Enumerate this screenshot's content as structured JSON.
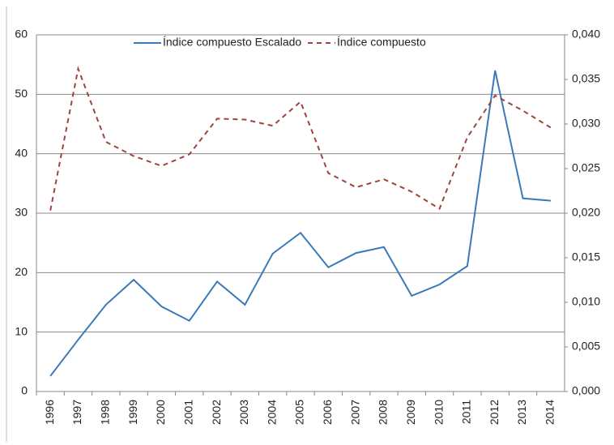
{
  "chart_data": {
    "type": "line",
    "categories": [
      "1996",
      "1997",
      "1998",
      "1999",
      "2000",
      "2001",
      "2002",
      "2003",
      "2004",
      "2005",
      "2006",
      "2007",
      "2008",
      "2009",
      "2010",
      "2011",
      "2012",
      "2013",
      "2014"
    ],
    "series": [
      {
        "name": "Índice compuesto Escalado",
        "color": "#3a7ab8",
        "dash": false,
        "values": [
          2.6,
          8.7,
          14.6,
          18.8,
          14.3,
          11.9,
          18.5,
          14.6,
          23.2,
          26.7,
          20.9,
          23.3,
          24.3,
          16.1,
          18.0,
          21.1,
          54.0,
          32.5,
          32.1
        ]
      },
      {
        "name": "Índice compuesto",
        "color": "#a0433f",
        "dash": true,
        "axis": "y2",
        "values": [
          0.0203,
          0.0362,
          0.028,
          0.0264,
          0.0253,
          0.0266,
          0.0306,
          0.0305,
          0.0298,
          0.0325,
          0.0245,
          0.0229,
          0.0238,
          0.0224,
          0.0205,
          0.0285,
          0.0332,
          0.0315,
          0.0296
        ]
      }
    ],
    "ylim": [
      0,
      60
    ],
    "yticks": [
      0,
      10,
      20,
      30,
      40,
      50,
      60
    ],
    "y2lim": [
      0,
      0.04
    ],
    "y2ticks": [
      {
        "value": 0,
        "label": "0,000"
      },
      {
        "value": 0.005,
        "label": "0,005"
      },
      {
        "value": 0.01,
        "label": "0,010"
      },
      {
        "value": 0.015,
        "label": "0,015"
      },
      {
        "value": 0.02,
        "label": "0,020"
      },
      {
        "value": 0.025,
        "label": "0,025"
      },
      {
        "value": 0.03,
        "label": "0,030"
      },
      {
        "value": 0.035,
        "label": "0,035"
      },
      {
        "value": 0.04,
        "label": "0,040"
      }
    ],
    "grid": true
  }
}
